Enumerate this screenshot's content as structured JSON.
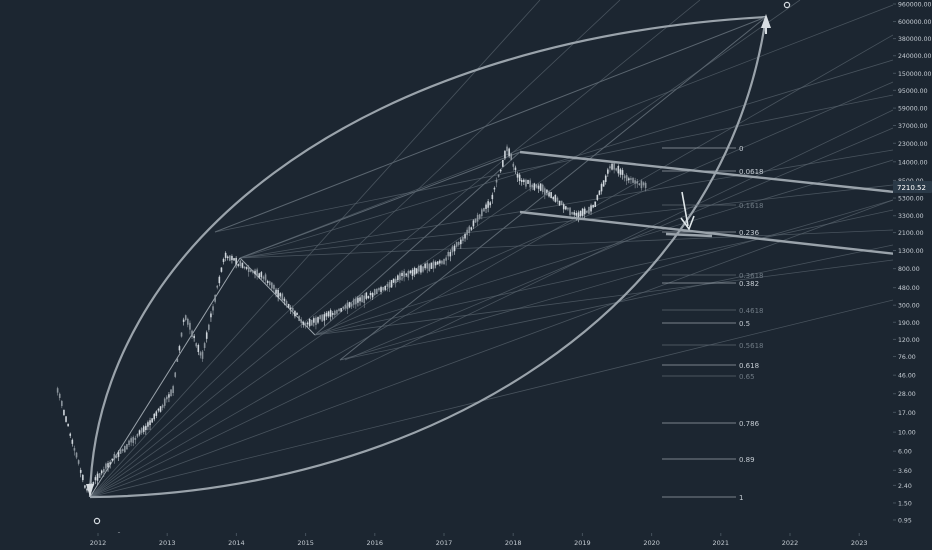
{
  "colors": {
    "background": "#1c2631",
    "line": "#9aa3ab",
    "faint_line": "#5b6670",
    "axis_text": "#c5ccd3",
    "price_badge_bg": "#2b3a48",
    "price_badge_text": "#ffffff",
    "candle_up": "#cfd6dc",
    "candle_down": "#8c959d"
  },
  "chart_data": {
    "type": "line",
    "scale": "log",
    "grid": false,
    "x_tick_labels": [
      "2012",
      "2013",
      "2014",
      "2015",
      "2016",
      "2017",
      "2018",
      "2019",
      "2020",
      "2021",
      "2022",
      "2023"
    ],
    "y_tick_labels": [
      "960000.00",
      "600000.00",
      "380000.00",
      "240000.00",
      "150000.00",
      "95000.00",
      "59000.00",
      "37000.00",
      "23000.00",
      "14000.00",
      "8500.00",
      "5300.00",
      "3300.00",
      "2100.00",
      "1300.00",
      "800.00",
      "480.00",
      "300.00",
      "190.00",
      "120.00",
      "76.00",
      "46.00",
      "28.00",
      "17.00",
      "10.00",
      "6.00",
      "3.60",
      "2.40",
      "1.50",
      "0.95"
    ],
    "ylim": [
      0.95,
      960000
    ],
    "current_price": "7210.52",
    "fib_levels": [
      {
        "label": "0",
        "faint": false
      },
      {
        "label": "0.0618",
        "faint": false
      },
      {
        "label": "0.1618",
        "faint": true
      },
      {
        "label": "0.236",
        "faint": false
      },
      {
        "label": "0.3618",
        "faint": true
      },
      {
        "label": "0.382",
        "faint": false
      },
      {
        "label": "0.4618",
        "faint": true
      },
      {
        "label": "0.5",
        "faint": false
      },
      {
        "label": "0.5618",
        "faint": true
      },
      {
        "label": "0.618",
        "faint": false
      },
      {
        "label": "0.65",
        "faint": true
      },
      {
        "label": "0.786",
        "faint": false
      },
      {
        "label": "0.89",
        "faint": false
      },
      {
        "label": "1",
        "faint": false
      }
    ],
    "price_series": {
      "x": [
        "2011-06",
        "2011-11",
        "2012-04",
        "2012-10",
        "2013-02",
        "2013-04",
        "2013-07",
        "2013-11",
        "2014-01",
        "2014-06",
        "2015-01",
        "2015-06",
        "2016-01",
        "2016-06",
        "2017-01",
        "2017-05",
        "2017-09",
        "2017-12",
        "2018-02",
        "2018-06",
        "2018-12",
        "2019-03",
        "2019-06",
        "2019-09",
        "2019-12"
      ],
      "y": [
        30,
        2,
        5,
        12,
        30,
        230,
        70,
        1150,
        900,
        600,
        170,
        240,
        400,
        650,
        950,
        2000,
        4500,
        19500,
        8500,
        6500,
        3200,
        4000,
        12500,
        8500,
        7200
      ]
    }
  }
}
